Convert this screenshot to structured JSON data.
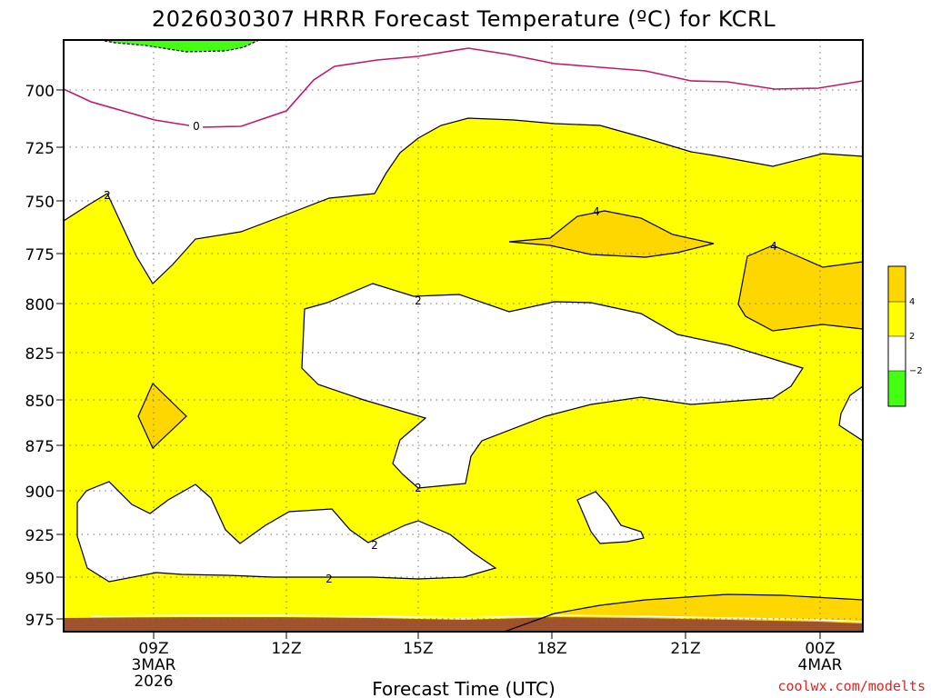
{
  "chart_data": {
    "type": "contour",
    "title": "2026030307 HRRR Forecast Temperature (ºC) for KCRL",
    "xlabel": "Forecast Time (UTC)",
    "ylabel": "",
    "ylim": [
      975,
      675
    ],
    "grid": true,
    "y_ticks": [
      "700",
      "725",
      "750",
      "775",
      "800",
      "825",
      "850",
      "875",
      "900",
      "925",
      "950",
      "975"
    ],
    "x_ticks": [
      {
        "line1": "09Z",
        "line2": "3MAR",
        "line3": "2026"
      },
      {
        "line1": "12Z",
        "line2": "",
        "line3": ""
      },
      {
        "line1": "15Z",
        "line2": "",
        "line3": ""
      },
      {
        "line1": "18Z",
        "line2": "",
        "line3": ""
      },
      {
        "line1": "21Z",
        "line2": "",
        "line3": ""
      },
      {
        "line1": "00Z",
        "line2": "4MAR",
        "line3": ""
      }
    ],
    "contour_labels": [
      {
        "text": "0",
        "level": 0
      },
      {
        "text": "2",
        "level": 2
      },
      {
        "text": "2",
        "level": 2
      },
      {
        "text": "2",
        "level": 2
      },
      {
        "text": "2",
        "level": 2
      },
      {
        "text": "2",
        "level": 2
      },
      {
        "text": "4",
        "level": 4
      },
      {
        "text": "4",
        "level": 4
      }
    ],
    "colorbar": [
      {
        "range": "< -2",
        "color": "#44ff11"
      },
      {
        "range": "-2 to 2",
        "color": "#ffffff"
      },
      {
        "range": "2 to 4",
        "color": "#ffff00"
      },
      {
        "range": "> 4",
        "color": "#ffd700"
      }
    ],
    "colorbar_labels": [
      "4",
      "2",
      "−2"
    ],
    "colors": {
      "zero_line": "#c2186c",
      "contour": "#000000",
      "ground": "#a0522d"
    }
  },
  "credit": "coolwx.com/modelts"
}
